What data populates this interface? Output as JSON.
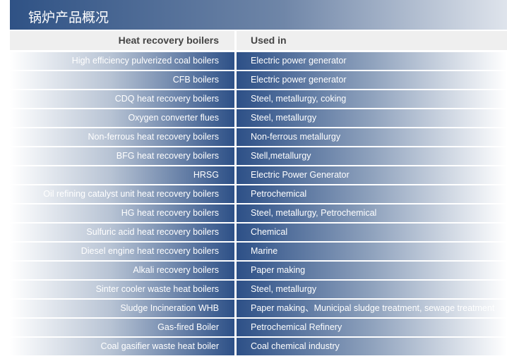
{
  "title": "锅炉产品概况",
  "header": {
    "col1": "Heat recovery boilers",
    "col2": "Used in"
  },
  "rows": [
    {
      "boiler": "High efficiency pulverized coal boilers",
      "used_in": "Electric power generator"
    },
    {
      "boiler": "CFB boilers",
      "used_in": "Electric power generator"
    },
    {
      "boiler": "CDQ heat recovery boilers",
      "used_in": "Steel, metallurgy, coking"
    },
    {
      "boiler": "Oxygen converter flues",
      "used_in": "Steel, metallurgy"
    },
    {
      "boiler": "Non-ferrous heat recovery boilers",
      "used_in": "Non-ferrous metallurgy"
    },
    {
      "boiler": "BFG heat recovery boilers",
      "used_in": "Stell,metallurgy"
    },
    {
      "boiler": "HRSG",
      "used_in": "Electric Power Generator"
    },
    {
      "boiler": "Oil refining catalyst unit heat recovery boilers",
      "used_in": "Petrochemical"
    },
    {
      "boiler": "HG heat recovery boilers",
      "used_in": "Steel, metallurgy, Petrochemical"
    },
    {
      "boiler": "Sulfuric acid heat recovery boilers",
      "used_in": "Chemical"
    },
    {
      "boiler": "Diesel engine heat recovery boilers",
      "used_in": "Marine"
    },
    {
      "boiler": "Alkali recovery boilers",
      "used_in": "Paper making"
    },
    {
      "boiler": "Sinter cooler waste heat boilers",
      "used_in": "Steel, metallurgy"
    },
    {
      "boiler": "Sludge Incineration WHB",
      "used_in": "Paper making、Municipal sludge treatment, sewage treatment"
    },
    {
      "boiler": "Gas-fired Boiler",
      "used_in": "Petrochemical Refinery"
    },
    {
      "boiler": "Coal gasifier waste heat boiler",
      "used_in": "Coal  chemical industry"
    }
  ]
}
